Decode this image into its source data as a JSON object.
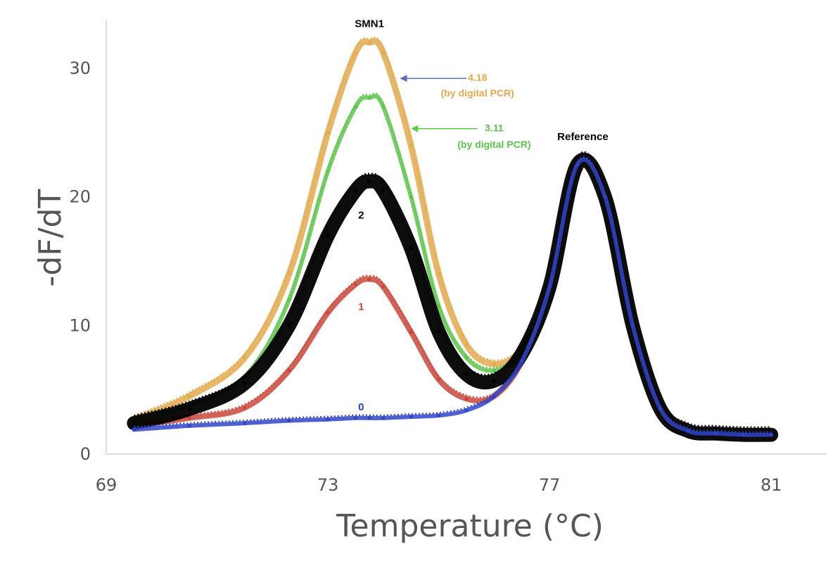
{
  "chart_data": {
    "type": "line",
    "title": "",
    "xlabel": "Temperature (°C)",
    "ylabel": "-dF/dT",
    "xlim": [
      69,
      82
    ],
    "ylim": [
      0,
      33
    ],
    "xticks": [
      "69",
      "73",
      "77",
      "81"
    ],
    "yticks": [
      "0",
      "10",
      "20",
      "30"
    ],
    "grid": false,
    "peak_labels": {
      "smn1": "SMN1",
      "reference": "Reference"
    },
    "series": [
      {
        "name": "4.18 (by digital PCR)",
        "copy_number": "4.18",
        "color": "#E2AA4E",
        "x": [
          69.5,
          70.5,
          71.5,
          72.3,
          73.0,
          73.5,
          73.75,
          74.0,
          74.5,
          75.0,
          75.5,
          76.0,
          76.5,
          77.0,
          77.5,
          78.0,
          78.5,
          79.0,
          79.5,
          80.0,
          80.5,
          81.0
        ],
        "y": [
          2.7,
          4.5,
          7.5,
          14.0,
          25.0,
          31.2,
          32.0,
          31.2,
          24.0,
          14.0,
          8.5,
          7.0,
          8.2,
          13.0,
          22.5,
          20.0,
          10.0,
          3.5,
          1.8,
          1.6,
          1.5,
          1.5
        ]
      },
      {
        "name": "3.11 (by digital PCR)",
        "copy_number": "3.11",
        "color": "#5CC64A",
        "x": [
          69.5,
          70.5,
          71.5,
          72.3,
          73.0,
          73.5,
          73.75,
          74.0,
          74.5,
          75.0,
          75.5,
          76.0,
          76.5,
          77.0,
          77.5,
          78.0,
          78.5,
          79.0,
          79.5,
          80.0,
          80.5,
          81.0
        ],
        "y": [
          2.5,
          3.8,
          6.0,
          12.0,
          22.0,
          27.0,
          27.7,
          27.0,
          20.0,
          11.5,
          7.5,
          6.5,
          8.0,
          13.0,
          22.5,
          20.0,
          10.0,
          3.5,
          1.8,
          1.6,
          1.5,
          1.5
        ]
      },
      {
        "name": "2",
        "copy_number": "2",
        "color": "#000000",
        "x": [
          69.5,
          70.5,
          71.5,
          72.3,
          73.0,
          73.5,
          73.75,
          74.0,
          74.5,
          75.0,
          75.5,
          76.0,
          76.5,
          77.0,
          77.5,
          78.0,
          78.5,
          79.0,
          79.5,
          80.0,
          80.5,
          81.0
        ],
        "y": [
          2.4,
          3.5,
          5.5,
          10.0,
          17.0,
          20.5,
          21.2,
          20.5,
          16.0,
          9.5,
          6.2,
          5.7,
          7.8,
          13.0,
          22.5,
          20.0,
          10.0,
          3.5,
          1.8,
          1.6,
          1.5,
          1.5
        ]
      },
      {
        "name": "1",
        "copy_number": "1",
        "color": "#C8473A",
        "x": [
          69.5,
          70.5,
          71.5,
          72.3,
          73.0,
          73.5,
          73.75,
          74.0,
          74.5,
          75.0,
          75.5,
          76.0,
          76.5,
          77.0,
          77.5,
          78.0,
          78.5,
          79.0,
          79.5,
          80.0,
          80.5,
          81.0
        ],
        "y": [
          2.2,
          2.8,
          3.6,
          6.5,
          11.0,
          13.2,
          13.6,
          13.0,
          9.5,
          5.8,
          4.3,
          4.5,
          7.2,
          13.0,
          22.5,
          20.0,
          10.0,
          3.5,
          1.8,
          1.6,
          1.5,
          1.5
        ]
      },
      {
        "name": "0",
        "copy_number": "0",
        "color": "#2F45C6",
        "x": [
          69.5,
          70.5,
          71.5,
          72.3,
          73.0,
          73.5,
          73.75,
          74.0,
          74.5,
          75.0,
          75.5,
          76.0,
          76.5,
          77.0,
          77.5,
          78.0,
          78.5,
          79.0,
          79.5,
          80.0,
          80.5,
          81.0
        ],
        "y": [
          1.9,
          2.2,
          2.4,
          2.6,
          2.7,
          2.8,
          2.8,
          2.8,
          2.9,
          3.0,
          3.4,
          4.5,
          7.2,
          13.0,
          22.5,
          20.0,
          10.0,
          3.5,
          1.8,
          1.6,
          1.5,
          1.5
        ]
      }
    ],
    "annotations": [
      {
        "name": "smn1-peak-label",
        "text": "SMN1",
        "color": "#000000",
        "x": 73.75,
        "y": 33.2
      },
      {
        "name": "reference-peak-label",
        "text": "Reference",
        "color": "#000000",
        "x": 77.6,
        "y": 24.4
      },
      {
        "name": "copy-4-value",
        "text": "4.18",
        "color": "#E2AA4E",
        "x": 75.7,
        "y": 29.0
      },
      {
        "name": "copy-4-method",
        "text": "(by digital PCR)",
        "color": "#E2AA4E",
        "x": 75.7,
        "y": 27.8
      },
      {
        "name": "copy-3-value",
        "text": "3.11",
        "color": "#5CC64A",
        "x": 76.0,
        "y": 25.1
      },
      {
        "name": "copy-3-method",
        "text": "(by digital PCR)",
        "color": "#5CC64A",
        "x": 76.0,
        "y": 23.8
      },
      {
        "name": "copy-2-label",
        "text": "2",
        "color": "#000000",
        "x": 73.6,
        "y": 18.3
      },
      {
        "name": "copy-1-label",
        "text": "1",
        "color": "#C8473A",
        "x": 73.6,
        "y": 11.2
      },
      {
        "name": "copy-0-label",
        "text": "0",
        "color": "#2F45C6",
        "x": 73.6,
        "y": 3.4
      }
    ],
    "arrows": [
      {
        "name": "arrow-4-18",
        "from": [
          75.5,
          29.2
        ],
        "to": [
          74.3,
          29.2
        ],
        "color": "#5870B8"
      },
      {
        "name": "arrow-3-11",
        "from": [
          75.7,
          25.3
        ],
        "to": [
          74.5,
          25.3
        ],
        "color": "#5CC64A"
      }
    ]
  }
}
